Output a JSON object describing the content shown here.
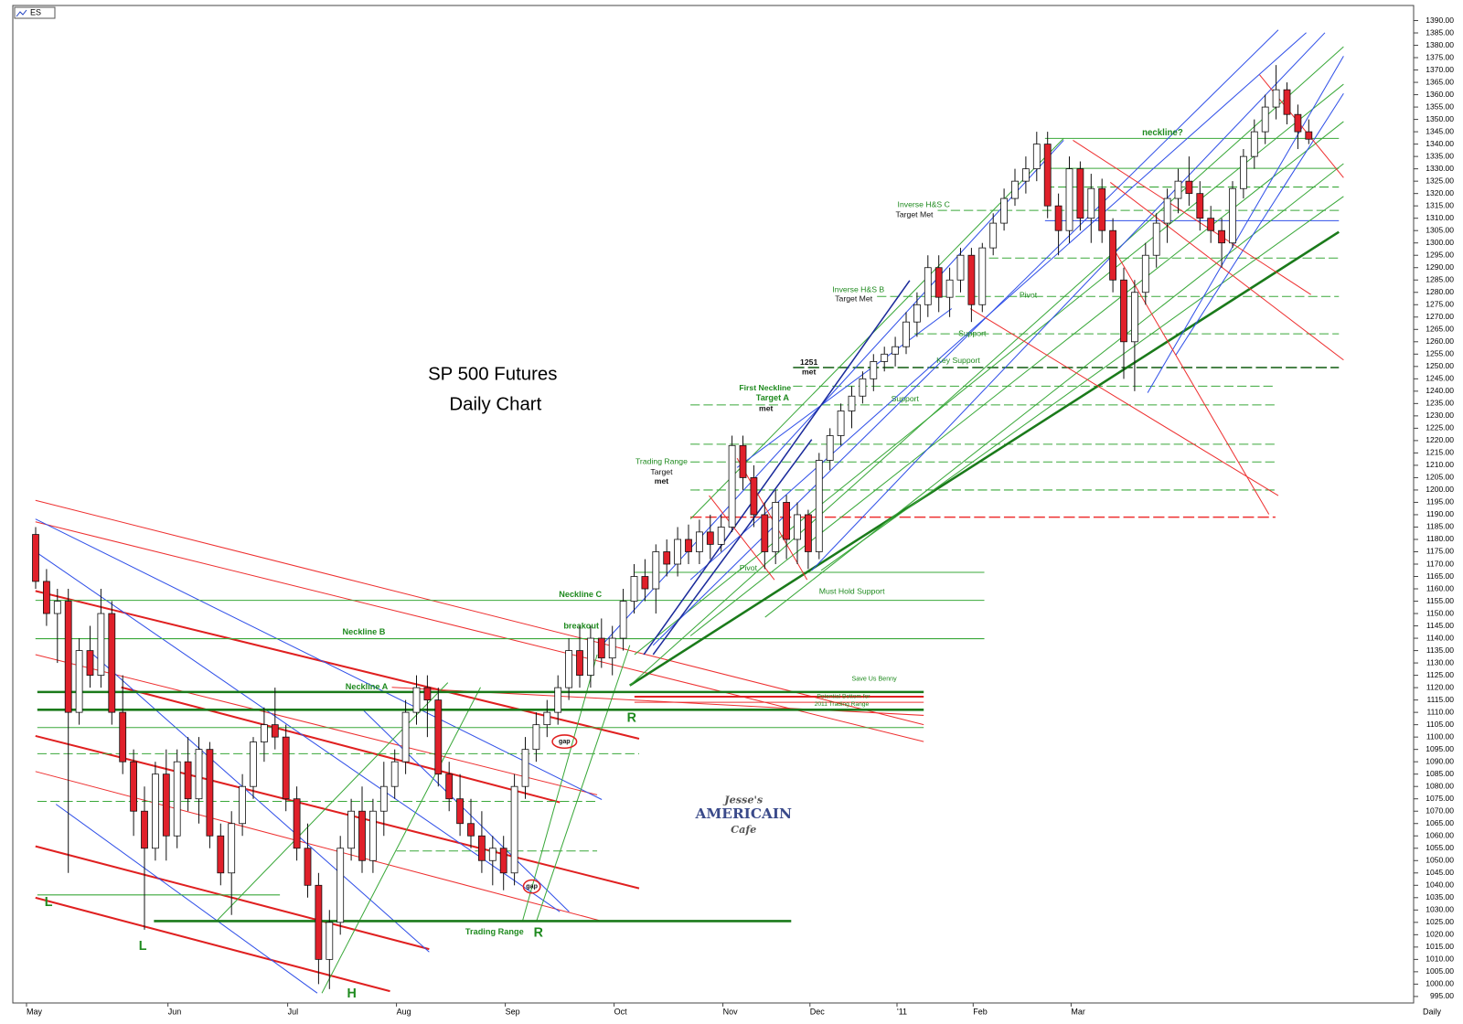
{
  "chart_data": {
    "type": "candlestick",
    "title": "SP 500 Futures",
    "subtitle": "Daily Chart",
    "symbol": "ES",
    "period": "Daily",
    "categories": [
      "May",
      null,
      null,
      null,
      null,
      null,
      null,
      null,
      null,
      null,
      null,
      null,
      null,
      "Jun",
      null,
      null,
      null,
      null,
      null,
      null,
      null,
      null,
      null,
      null,
      "Jul",
      null,
      null,
      null,
      null,
      null,
      null,
      null,
      null,
      null,
      "Aug",
      null,
      null,
      null,
      null,
      null,
      null,
      null,
      null,
      null,
      "Sep",
      null,
      null,
      null,
      null,
      null,
      null,
      null,
      null,
      null,
      "Oct",
      null,
      null,
      null,
      null,
      null,
      null,
      null,
      null,
      null,
      "Nov",
      null,
      null,
      null,
      null,
      null,
      null,
      null,
      "Dec",
      null,
      null,
      null,
      null,
      null,
      null,
      null,
      "'11",
      null,
      null,
      null,
      null,
      null,
      null,
      "Feb",
      null,
      null,
      null,
      null,
      null,
      null,
      null,
      null,
      "Mar",
      null,
      null,
      null,
      null,
      null,
      null,
      null,
      null,
      null,
      null,
      null,
      null,
      null,
      null,
      null,
      null,
      null,
      null,
      null,
      null,
      null
    ],
    "open": [
      1182,
      1163,
      1150,
      1155,
      1110,
      1135,
      1125,
      1150,
      1110,
      1090,
      1070,
      1055,
      1085,
      1060,
      1090,
      1075,
      1095,
      1060,
      1045,
      1065,
      1080,
      1098,
      1105,
      1100,
      1075,
      1055,
      1040,
      1010,
      1025,
      1055,
      1070,
      1050,
      1070,
      1080,
      1090,
      1110,
      1120,
      1115,
      1085,
      1075,
      1065,
      1060,
      1050,
      1055,
      1045,
      1080,
      1095,
      1105,
      1110,
      1120,
      1135,
      1125,
      1140,
      1132,
      1140,
      1155,
      1165,
      1160,
      1175,
      1170,
      1180,
      1175,
      1183,
      1178,
      1185,
      1218,
      1205,
      1190,
      1175,
      1195,
      1180,
      1190,
      1175,
      1212,
      1222,
      1232,
      1238,
      1245,
      1252,
      1255,
      1258,
      1268,
      1275,
      1290,
      1278,
      1285,
      1295,
      1275,
      1298,
      1308,
      1318,
      1325,
      1330,
      1340,
      1315,
      1305,
      1330,
      1310,
      1322,
      1305,
      1285,
      1260,
      1280,
      1295,
      1308,
      1318,
      1325,
      1320,
      1310,
      1305,
      1300,
      1322,
      1335,
      1345,
      1355,
      1362,
      1352,
      1345
    ],
    "high": [
      1185,
      1168,
      1160,
      1160,
      1140,
      1145,
      1160,
      1155,
      1125,
      1095,
      1080,
      1090,
      1095,
      1095,
      1100,
      1100,
      1098,
      1065,
      1070,
      1085,
      1100,
      1112,
      1120,
      1105,
      1080,
      1065,
      1045,
      1030,
      1060,
      1075,
      1080,
      1075,
      1090,
      1095,
      1115,
      1125,
      1125,
      1120,
      1090,
      1085,
      1075,
      1070,
      1060,
      1060,
      1085,
      1100,
      1110,
      1115,
      1125,
      1140,
      1145,
      1145,
      1148,
      1145,
      1160,
      1170,
      1172,
      1178,
      1180,
      1185,
      1186,
      1188,
      1190,
      1190,
      1222,
      1222,
      1210,
      1195,
      1200,
      1198,
      1195,
      1192,
      1215,
      1225,
      1235,
      1242,
      1248,
      1255,
      1258,
      1262,
      1272,
      1280,
      1295,
      1295,
      1290,
      1298,
      1298,
      1300,
      1312,
      1322,
      1330,
      1335,
      1345,
      1345,
      1320,
      1335,
      1333,
      1328,
      1326,
      1310,
      1290,
      1285,
      1300,
      1312,
      1322,
      1330,
      1335,
      1325,
      1315,
      1310,
      1325,
      1338,
      1350,
      1360,
      1372,
      1365,
      1356,
      1350
    ],
    "low": [
      1160,
      1145,
      1130,
      1045,
      1105,
      1120,
      1120,
      1105,
      1085,
      1060,
      1022,
      1050,
      1050,
      1055,
      1070,
      1065,
      1055,
      1040,
      1028,
      1060,
      1075,
      1090,
      1095,
      1070,
      1050,
      1035,
      1000,
      998,
      1020,
      1050,
      1045,
      1045,
      1060,
      1075,
      1085,
      1105,
      1100,
      1080,
      1070,
      1060,
      1055,
      1045,
      1040,
      1038,
      1040,
      1075,
      1090,
      1100,
      1105,
      1115,
      1120,
      1120,
      1128,
      1125,
      1135,
      1150,
      1155,
      1150,
      1165,
      1165,
      1170,
      1170,
      1172,
      1175,
      1183,
      1200,
      1185,
      1168,
      1170,
      1172,
      1170,
      1168,
      1172,
      1208,
      1218,
      1225,
      1235,
      1240,
      1248,
      1250,
      1255,
      1262,
      1270,
      1272,
      1270,
      1280,
      1268,
      1272,
      1295,
      1305,
      1315,
      1320,
      1325,
      1310,
      1295,
      1300,
      1305,
      1300,
      1300,
      1280,
      1245,
      1240,
      1275,
      1290,
      1300,
      1312,
      1315,
      1305,
      1300,
      1290,
      1298,
      1318,
      1330,
      1340,
      1350,
      1348,
      1338,
      1340
    ],
    "close": [
      1163,
      1150,
      1155,
      1110,
      1135,
      1125,
      1150,
      1110,
      1090,
      1070,
      1055,
      1085,
      1060,
      1090,
      1075,
      1095,
      1060,
      1045,
      1065,
      1080,
      1098,
      1105,
      1100,
      1075,
      1055,
      1040,
      1010,
      1025,
      1055,
      1070,
      1050,
      1070,
      1080,
      1090,
      1110,
      1120,
      1115,
      1085,
      1075,
      1065,
      1060,
      1050,
      1055,
      1045,
      1080,
      1095,
      1105,
      1110,
      1120,
      1135,
      1125,
      1140,
      1132,
      1140,
      1155,
      1165,
      1160,
      1175,
      1170,
      1180,
      1175,
      1183,
      1178,
      1185,
      1218,
      1205,
      1190,
      1175,
      1195,
      1180,
      1190,
      1175,
      1212,
      1222,
      1232,
      1238,
      1245,
      1252,
      1255,
      1258,
      1268,
      1275,
      1290,
      1278,
      1285,
      1295,
      1275,
      1298,
      1308,
      1318,
      1325,
      1330,
      1340,
      1315,
      1305,
      1330,
      1310,
      1322,
      1305,
      1285,
      1260,
      1280,
      1295,
      1308,
      1318,
      1325,
      1320,
      1310,
      1305,
      1300,
      1322,
      1335,
      1345,
      1355,
      1362,
      1352,
      1345,
      1342
    ],
    "up_color": "#ffffff",
    "down_color": "#e0202a",
    "ylim": [
      992,
      1393
    ],
    "yticks": [
      {
        "value": 995,
        "label": "995.00"
      },
      {
        "value": 1000,
        "label": "1000.00"
      },
      {
        "value": 1005,
        "label": "1005.00"
      },
      {
        "value": 1010,
        "label": "1010.00"
      },
      {
        "value": 1015,
        "label": "1015.00"
      },
      {
        "value": 1020,
        "label": "1020.00"
      },
      {
        "value": 1025,
        "label": "1025.00"
      },
      {
        "value": 1030,
        "label": "1030.00"
      },
      {
        "value": 1035,
        "label": "1035.00"
      },
      {
        "value": 1040,
        "label": "1040.00"
      },
      {
        "value": 1045,
        "label": "1045.00"
      },
      {
        "value": 1050,
        "label": "1050.00"
      },
      {
        "value": 1055,
        "label": "1055.00"
      },
      {
        "value": 1060,
        "label": "1060.00"
      },
      {
        "value": 1065,
        "label": "1065.00"
      },
      {
        "value": 1070,
        "label": "1070.00"
      },
      {
        "value": 1075,
        "label": "1075.00"
      },
      {
        "value": 1080,
        "label": "1080.00"
      },
      {
        "value": 1085,
        "label": "1085.00"
      },
      {
        "value": 1090,
        "label": "1090.00"
      },
      {
        "value": 1095,
        "label": "1095.00"
      },
      {
        "value": 1100,
        "label": "1100.00"
      },
      {
        "value": 1105,
        "label": "1105.00"
      },
      {
        "value": 1110,
        "label": "1110.00"
      },
      {
        "value": 1115,
        "label": "1115.00"
      },
      {
        "value": 1120,
        "label": "1120.00"
      },
      {
        "value": 1125,
        "label": "1125.00"
      },
      {
        "value": 1130,
        "label": "1130.00"
      },
      {
        "value": 1135,
        "label": "1135.00"
      },
      {
        "value": 1140,
        "label": "1140.00"
      },
      {
        "value": 1145,
        "label": "1145.00"
      },
      {
        "value": 1150,
        "label": "1150.00"
      },
      {
        "value": 1155,
        "label": "1155.00"
      },
      {
        "value": 1160,
        "label": "1160.00"
      },
      {
        "value": 1165,
        "label": "1165.00"
      },
      {
        "value": 1170,
        "label": "1170.00"
      },
      {
        "value": 1175,
        "label": "1175.00"
      },
      {
        "value": 1180,
        "label": "1180.00"
      },
      {
        "value": 1185,
        "label": "1185.00"
      },
      {
        "value": 1190,
        "label": "1190.00"
      },
      {
        "value": 1195,
        "label": "1195.00"
      },
      {
        "value": 1200,
        "label": "1200.00"
      },
      {
        "value": 1205,
        "label": "1205.00"
      },
      {
        "value": 1210,
        "label": "1210.00"
      },
      {
        "value": 1215,
        "label": "1215.00"
      },
      {
        "value": 1220,
        "label": "1220.00"
      },
      {
        "value": 1225,
        "label": "1225.00"
      },
      {
        "value": 1230,
        "label": "1230.00"
      },
      {
        "value": 1235,
        "label": "1235.00"
      },
      {
        "value": 1240,
        "label": "1240.00"
      },
      {
        "value": 1245,
        "label": "1245.00"
      },
      {
        "value": 1250,
        "label": "1250.00"
      },
      {
        "value": 1255,
        "label": "1255.00"
      },
      {
        "value": 1260,
        "label": "1260.00"
      },
      {
        "value": 1265,
        "label": "1265.00"
      },
      {
        "value": 1270,
        "label": "1270.00"
      },
      {
        "value": 1275,
        "label": "1275.00"
      },
      {
        "value": 1280,
        "label": "1280.00"
      },
      {
        "value": 1285,
        "label": "1285.00"
      },
      {
        "value": 1290,
        "label": "1290.00"
      },
      {
        "value": 1295,
        "label": "1295.00"
      },
      {
        "value": 1300,
        "label": "1300.00"
      },
      {
        "value": 1305,
        "label": "1305.00"
      },
      {
        "value": 1310,
        "label": "1310.00"
      },
      {
        "value": 1315,
        "label": "1315.00"
      },
      {
        "value": 1320,
        "label": "1320.00"
      },
      {
        "value": 1325,
        "label": "1325.00"
      },
      {
        "value": 1330,
        "label": "1330.00"
      },
      {
        "value": 1335,
        "label": "1335.00"
      },
      {
        "value": 1340,
        "label": "1340.00"
      },
      {
        "value": 1345,
        "label": "1345.00"
      },
      {
        "value": 1350,
        "label": "1350.00"
      },
      {
        "value": 1355,
        "label": "1355.00"
      },
      {
        "value": 1360,
        "label": "1360.00"
      },
      {
        "value": 1365,
        "label": "1365.00"
      },
      {
        "value": 1370,
        "label": "1370.00"
      },
      {
        "value": 1375,
        "label": "1375.00"
      },
      {
        "value": 1380,
        "label": "1380.00"
      },
      {
        "value": 1385,
        "label": "1385.00"
      },
      {
        "value": 1390,
        "label": "1390.00"
      }
    ],
    "annotations": [
      "Neckline  C",
      "Neckline  B",
      "Neckline  A",
      "breakout",
      "Trading Range",
      "Target",
      "met",
      "First Neckline",
      "Target  A",
      "met",
      "1251",
      "met",
      "Inverse H&S  B",
      "Target Met",
      "Inverse H&S  C",
      "Target Met",
      "neckline?",
      "Pivot",
      "Support",
      "Key Support",
      "Support",
      "Pivot",
      "Must Hold Support",
      "Save Us Benny",
      "Potential Bottom for",
      "2011 Trading Range",
      "Trading Range",
      "L",
      "L",
      "H",
      "R",
      "R",
      "gap",
      "gap"
    ],
    "logo": [
      "Jesse's",
      "AMERICAIN",
      "Cafe"
    ]
  }
}
